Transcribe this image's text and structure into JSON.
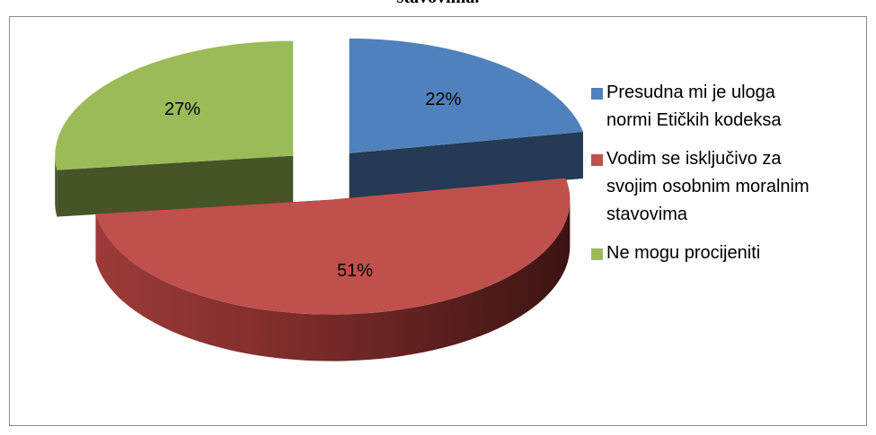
{
  "header_fragment": "stavovima.",
  "chart_data": {
    "type": "pie",
    "style": "3d-exploded",
    "legend_position": "right",
    "series": [
      {
        "name": "Presudna mi je uloga normi Etičkih kodeksa",
        "value": 22,
        "label": "22%",
        "color": "#4f81bd"
      },
      {
        "name": "Vodim se isključivo za svojim osobnim moralnim stavovima",
        "value": 51,
        "label": "51%",
        "color": "#c0504d"
      },
      {
        "name": "Ne mogu procijeniti",
        "value": 27,
        "label": "27%",
        "color": "#9bbb59"
      }
    ],
    "legend": [
      {
        "lines": [
          "Presudna mi je uloga",
          "normi Etičkih kodeksa"
        ]
      },
      {
        "lines": [
          "Vodim se isključivo za",
          "svojim osobnim moralnim",
          "stavovima"
        ]
      },
      {
        "lines": [
          "Ne mogu procijeniti"
        ]
      }
    ]
  }
}
